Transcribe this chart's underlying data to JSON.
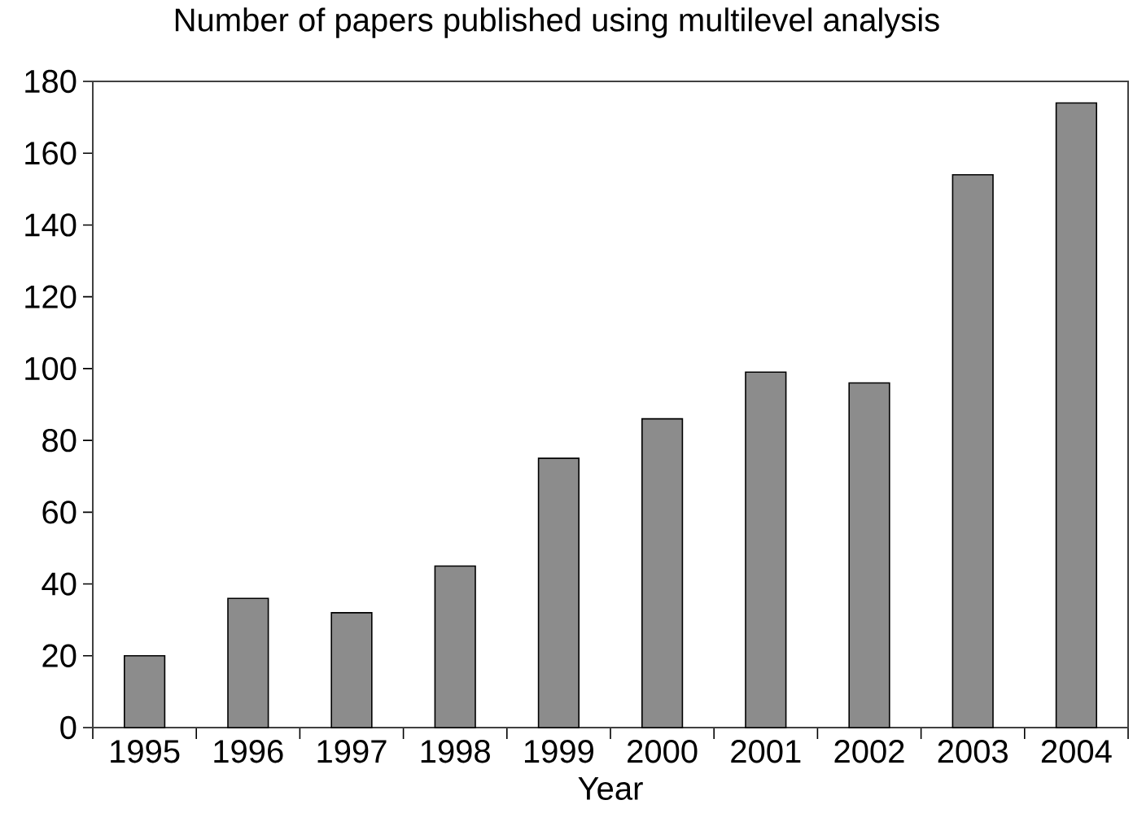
{
  "chart_data": {
    "type": "bar",
    "title": "Number of papers published using multilevel analysis",
    "xlabel": "Year",
    "categories": [
      "1995",
      "1996",
      "1997",
      "1998",
      "1999",
      "2000",
      "2001",
      "2002",
      "2003",
      "2004"
    ],
    "values": [
      20,
      36,
      32,
      45,
      75,
      86,
      99,
      96,
      154,
      174
    ],
    "color": "#8c8c8c",
    "ylim": [
      0,
      180
    ],
    "yticks": [
      0,
      20,
      40,
      60,
      80,
      100,
      120,
      140,
      160,
      180
    ]
  }
}
